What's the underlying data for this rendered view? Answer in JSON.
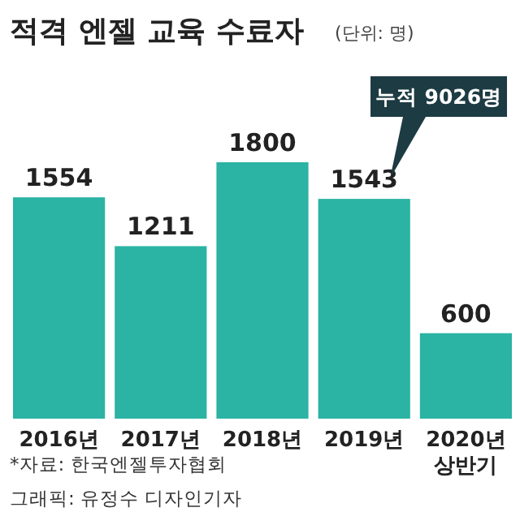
{
  "chart_data": {
    "type": "bar",
    "title": "적격 엔젤 교육 수료자",
    "subtitle": "(단위: 명)",
    "categories": [
      "2016년",
      "2017년",
      "2018년",
      "2019년",
      "2020년 상반기"
    ],
    "values": [
      1554,
      1211,
      1800,
      1543,
      600
    ],
    "color": "#2bb3a3",
    "data_labels": true,
    "annotations": [
      "누적 9026명",
      "*자료: 한국엔젤투자협회",
      "그래픽: 유정수 디자인기자"
    ]
  }
}
